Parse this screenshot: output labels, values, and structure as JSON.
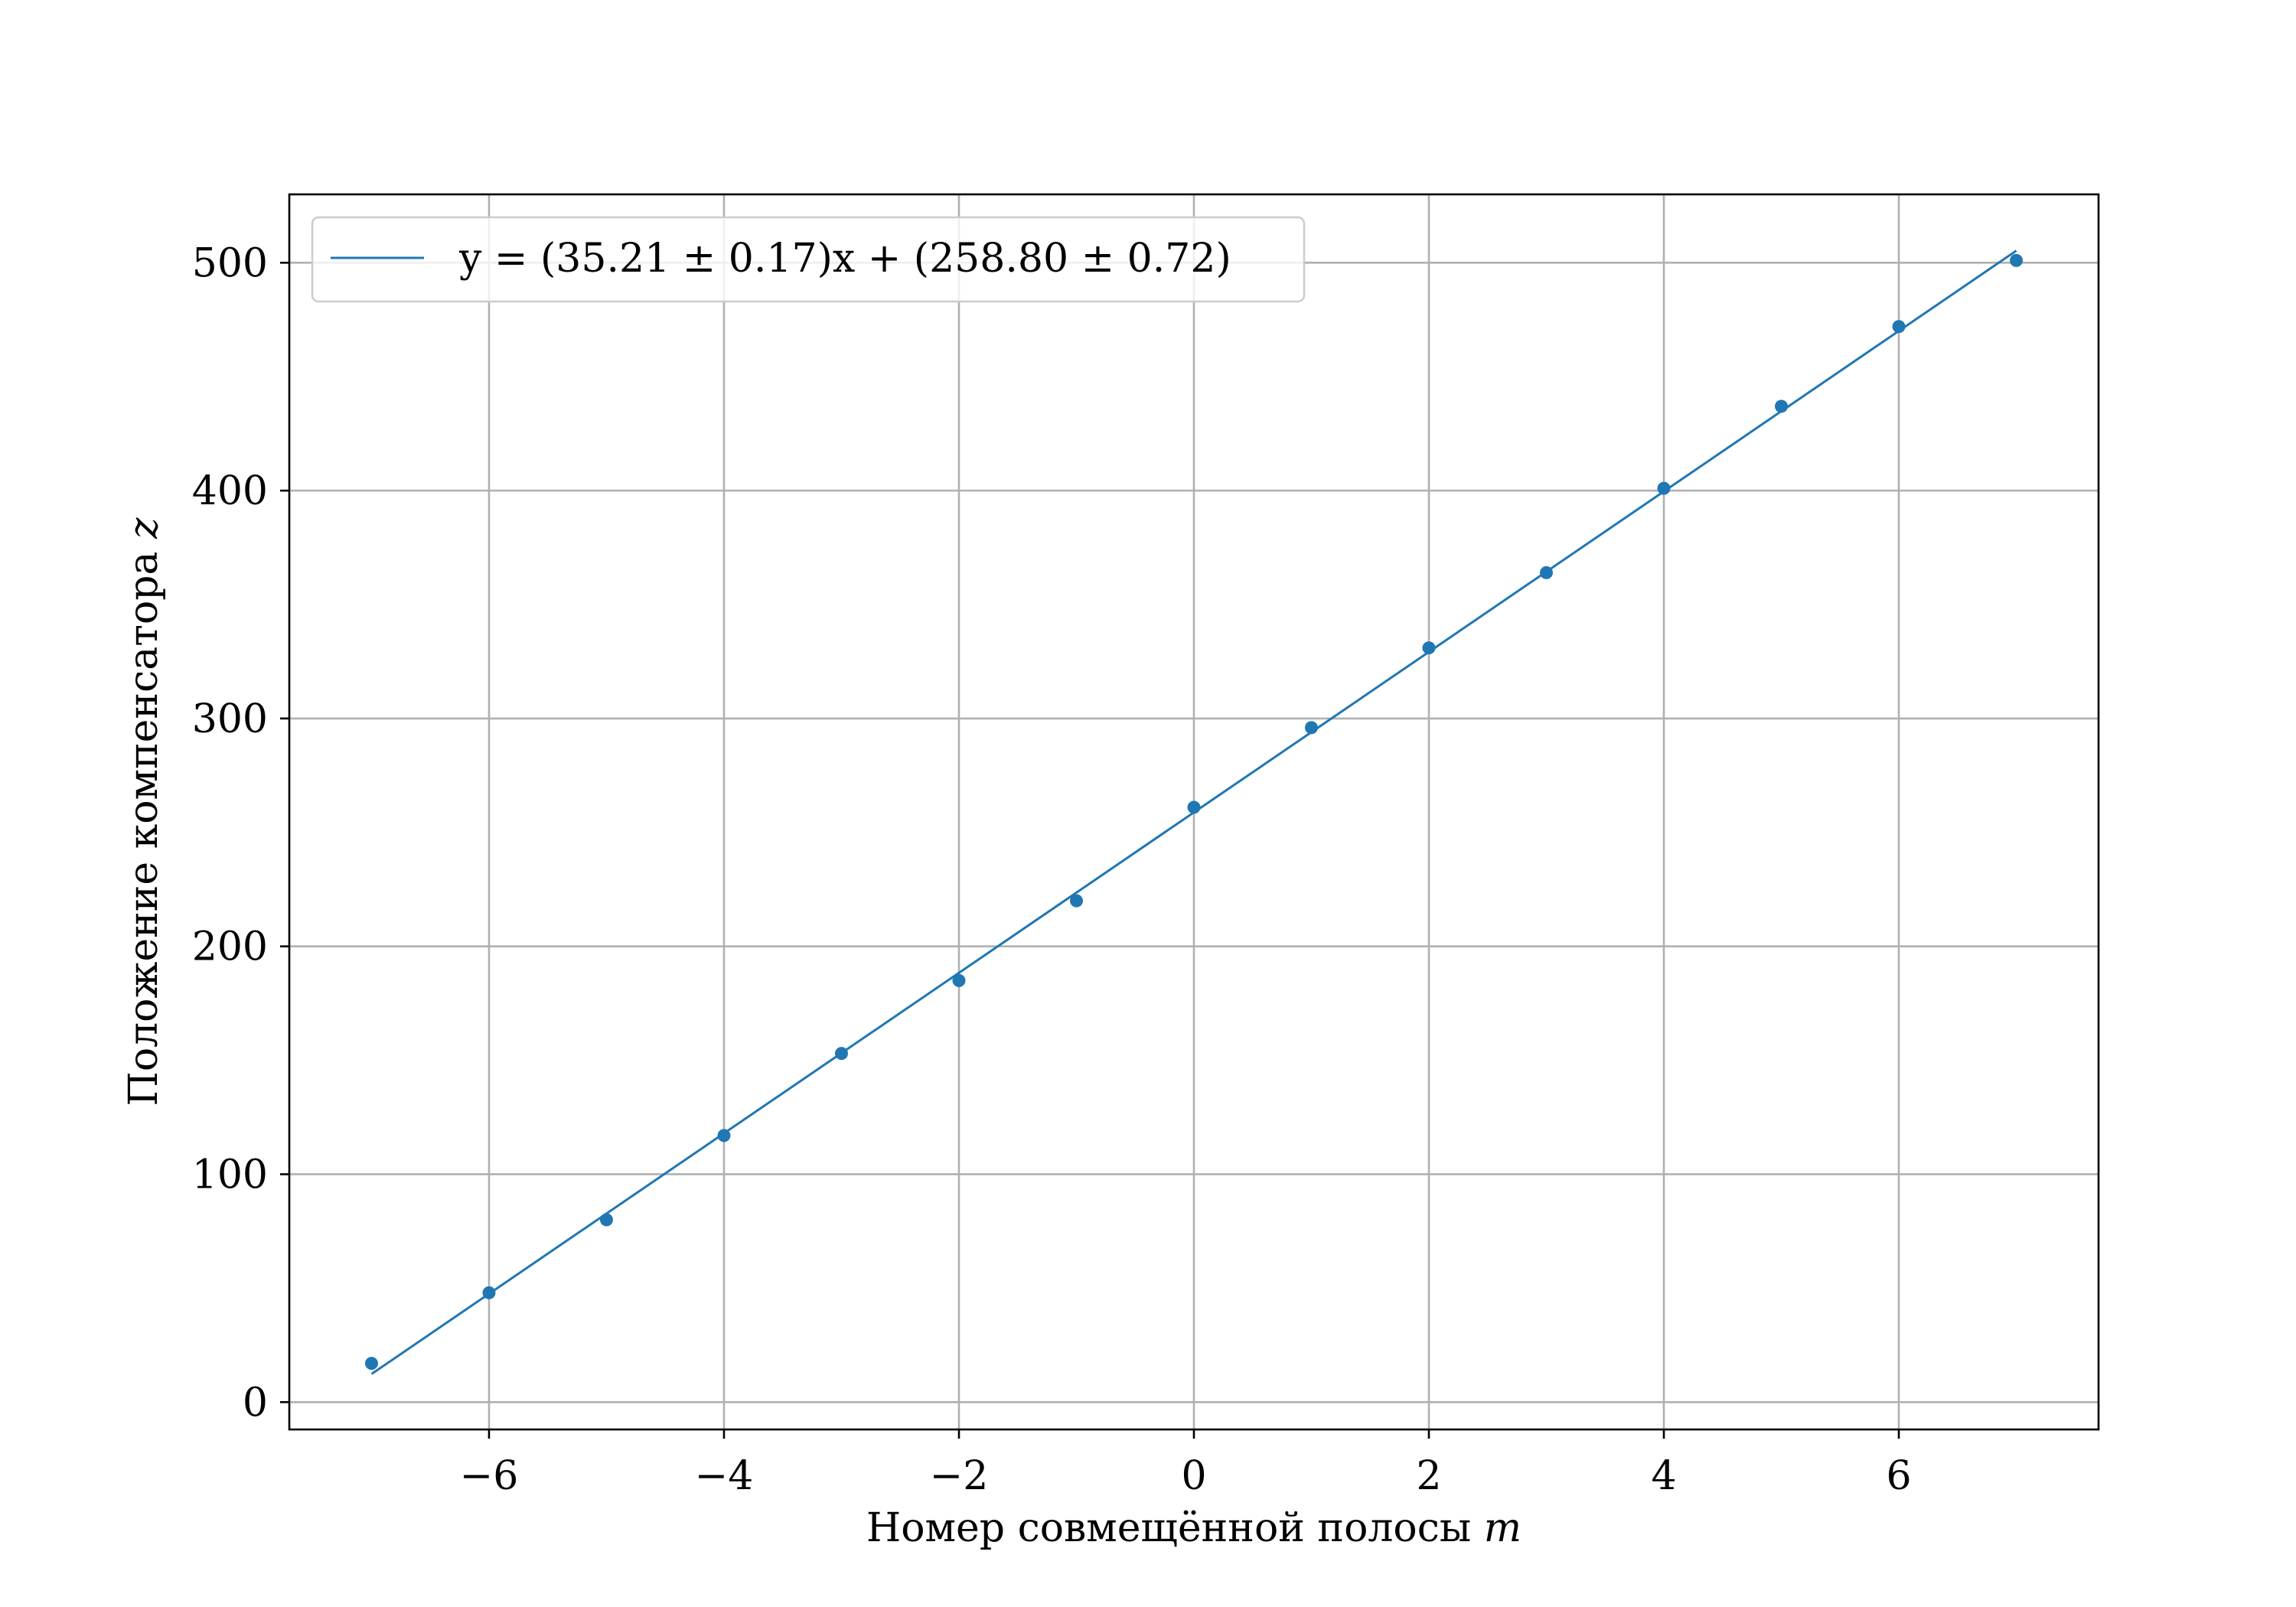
{
  "chart_data": {
    "type": "scatter",
    "xlabel": "Номер совмещённой полосы",
    "xlabel_var": "m",
    "ylabel": "Положение компенсатора",
    "ylabel_var": "z",
    "xlim": [
      -7.7,
      7.7
    ],
    "ylim": [
      -12,
      530
    ],
    "x_ticks": [
      -6,
      -4,
      -2,
      0,
      2,
      4,
      6
    ],
    "x_tick_labels": [
      "−6",
      "−4",
      "−2",
      "0",
      "2",
      "4",
      "6"
    ],
    "y_ticks": [
      0,
      100,
      200,
      300,
      400,
      500
    ],
    "y_tick_labels": [
      "0",
      "100",
      "200",
      "300",
      "400",
      "500"
    ],
    "grid": true,
    "legend_position": "top-left",
    "color": "#1f77b4",
    "series": [
      {
        "kind": "points",
        "x": [
          -7,
          -6,
          -5,
          -4,
          -3,
          -2,
          -1,
          0,
          1,
          2,
          3,
          4,
          5,
          6,
          7
        ],
        "y": [
          17,
          48,
          80,
          117,
          153,
          185,
          220,
          261,
          296,
          331,
          364,
          401,
          437,
          472,
          501
        ]
      },
      {
        "kind": "fit-line",
        "slope": 35.21,
        "intercept": 258.8,
        "x_range": [
          -7,
          7
        ],
        "legend_label": "y = (35.21 ± 0.17)x + (258.80 ± 0.72)"
      }
    ]
  }
}
